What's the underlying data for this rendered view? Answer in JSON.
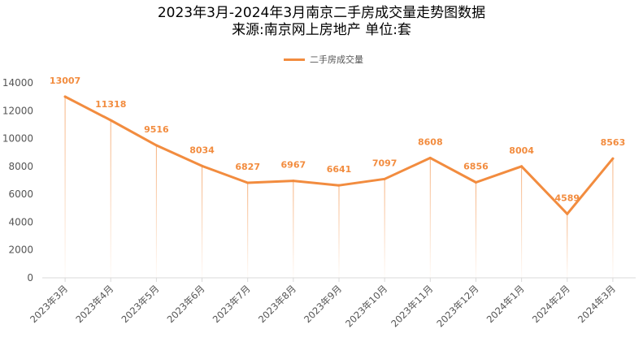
{
  "chart_data": {
    "type": "line",
    "title": "2023年3月-2024年3月南京二手房成交量走势图数据",
    "subtitle": "来源:南京网上房地产 单位:套",
    "categories": [
      "2023年3月",
      "2023年4月",
      "2023年5月",
      "2023年6月",
      "2023年7月",
      "2023年8月",
      "2023年9月",
      "2023年10月",
      "2023年11月",
      "2023年12月",
      "2024年1月",
      "2024年2月",
      "2024年3月"
    ],
    "series": [
      {
        "name": "二手房成交量",
        "values": [
          13007,
          11318,
          9516,
          8034,
          6827,
          6967,
          6641,
          7097,
          8608,
          6856,
          8004,
          4589,
          8563
        ]
      }
    ],
    "ylim": [
      0,
      14000
    ],
    "yticks": [
      0,
      2000,
      4000,
      6000,
      8000,
      10000,
      12000,
      14000
    ],
    "grid": false,
    "legend": "top-center",
    "color": "#F28C3F"
  }
}
